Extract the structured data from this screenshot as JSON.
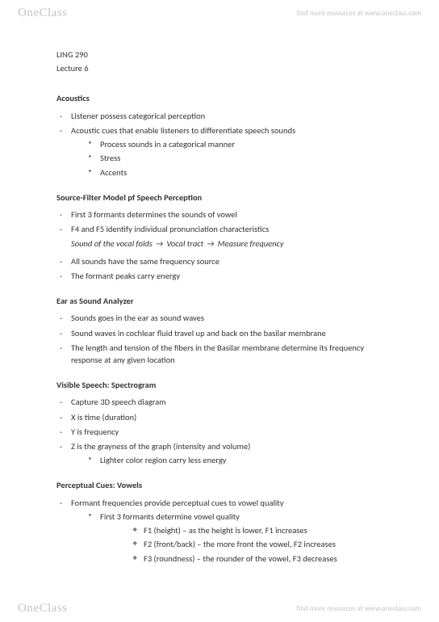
{
  "watermark": {
    "logo": "OneClass",
    "link": "find more resources at www.oneclass.com"
  },
  "header": {
    "course": "LING 290",
    "lecture": "Lecture 6"
  },
  "sections": {
    "acoustics": {
      "title": "Acoustics",
      "b1": "Listener possess categorical perception",
      "b2": "Acoustic cues that enable listeners to differentiate speech sounds",
      "b2a": "Process sounds in a categorical manner",
      "b2b": "Stress",
      "b2c": "Accents"
    },
    "sourcefilter": {
      "title": "Source-Filter Model pf Speech Perception",
      "b1": "First 3 formants determines the sounds of vowel",
      "b2": "F4 and F5 identify individual pronunciation characteristics",
      "flow1": "Sound of the vocal folds",
      "flow2": "Vocal tract",
      "flow3": "Measure frequency",
      "b3": "All sounds have the same frequency source",
      "b4": "The formant peaks carry energy"
    },
    "ear": {
      "title": "Ear as Sound Analyzer",
      "b1": "Sounds goes in the ear as sound waves",
      "b2": "Sound waves in cochlear fluid travel up and back on the basilar membrane",
      "b3": "The length and tension of the fibers in the Basilar membrane determine its frequency response at any given location"
    },
    "spectrogram": {
      "title": "Visible Speech: Spectrogram",
      "b1": "Capture 3D speech diagram",
      "b2": "X is time (duration)",
      "b3": "Y is frequency",
      "b4": "Z is the grayness of the graph (intensity and volume)",
      "b4a": "Lighter color region carry less energy"
    },
    "vowels": {
      "title": "Perceptual Cues: Vowels",
      "b1": "Formant frequencies provide perceptual cues to vowel quality",
      "b1a": "First 3 formants determine vowel quality",
      "b1a1": "F1 (height) – as the height is lower, F1 increases",
      "b1a2": "F2 (front/back) – the more front the vowel, F2 increases",
      "b1a3": "F3 (roundness) – the rounder of the vowel, F3 decreases"
    }
  }
}
